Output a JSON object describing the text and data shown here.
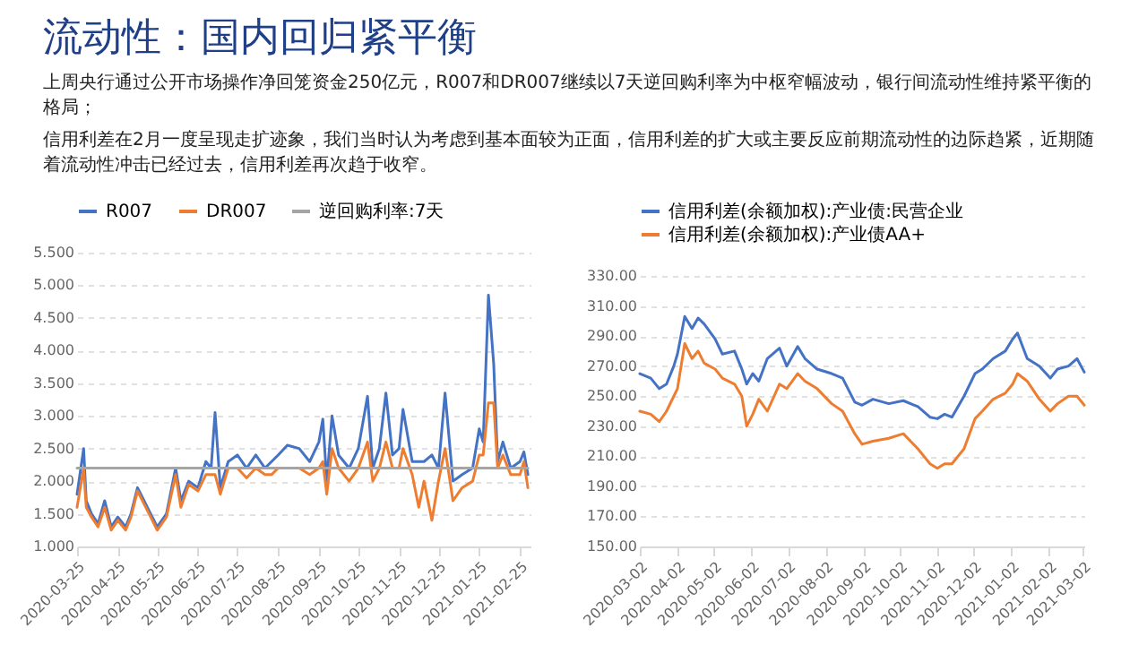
{
  "chart_data": [
    {
      "type": "other",
      "title": "流动性：国内回归紧平衡",
      "annotations": [
        "上周央行通过公开市场操作净回笼资金250亿元，R007和DR007继续以7天逆回购利率为中枢窄幅波动，银行间流动性维持紧平衡的格局；",
        "信用利差在2月一度呈现走扩迹象，我们当时认为考虑到基本面较为正面，信用利差的扩大或主要反应前期流动性的边际趋紧，近期随着流动性冲击已经过去，信用利差再次趋于收窄。"
      ]
    },
    {
      "type": "line",
      "legend": "top",
      "grid": "y",
      "xlim": [
        "2020-03-25",
        "2021-03-05"
      ],
      "xticks": [
        "2020-03-25",
        "2020-04-25",
        "2020-05-25",
        "2020-06-25",
        "2020-07-25",
        "2020-08-25",
        "2020-09-25",
        "2020-10-25",
        "2020-11-25",
        "2020-12-25",
        "2021-01-25",
        "2021-02-25"
      ],
      "ylim": [
        1,
        5.5
      ],
      "yticks": [
        {
          "value": 1,
          "label": "1.000"
        },
        {
          "value": 1.5,
          "label": "1.500"
        },
        {
          "value": 2,
          "label": "2.000"
        },
        {
          "value": 2.5,
          "label": "2.500"
        },
        {
          "value": 3,
          "label": "3.000"
        },
        {
          "value": 3.5,
          "label": "3.500"
        },
        {
          "value": 4,
          "label": "4.000"
        },
        {
          "value": 4.5,
          "label": "4.500"
        },
        {
          "value": 5,
          "label": "5.000"
        },
        {
          "value": 5.5,
          "label": "5.500"
        }
      ],
      "x": [
        "2020-03-25",
        "2020-03-30",
        "2020-04-01",
        "2020-04-05",
        "2020-04-10",
        "2020-04-15",
        "2020-04-20",
        "2020-04-25",
        "2020-05-01",
        "2020-05-05",
        "2020-05-10",
        "2020-05-15",
        "2020-05-20",
        "2020-05-25",
        "2020-06-01",
        "2020-06-08",
        "2020-06-12",
        "2020-06-18",
        "2020-06-25",
        "2020-07-01",
        "2020-07-05",
        "2020-07-08",
        "2020-07-12",
        "2020-07-18",
        "2020-07-25",
        "2020-08-01",
        "2020-08-08",
        "2020-08-15",
        "2020-08-20",
        "2020-08-25",
        "2020-09-01",
        "2020-09-10",
        "2020-09-18",
        "2020-09-25",
        "2020-09-28",
        "2020-10-01",
        "2020-10-05",
        "2020-10-10",
        "2020-10-18",
        "2020-10-25",
        "2020-11-01",
        "2020-11-05",
        "2020-11-10",
        "2020-11-15",
        "2020-11-20",
        "2020-11-25",
        "2020-11-28",
        "2020-12-05",
        "2020-12-10",
        "2020-12-14",
        "2020-12-20",
        "2020-12-25",
        "2020-12-30",
        "2021-01-05",
        "2021-01-12",
        "2021-01-20",
        "2021-01-25",
        "2021-01-28",
        "2021-02-01",
        "2021-02-05",
        "2021-02-08",
        "2021-02-12",
        "2021-02-18",
        "2021-02-25",
        "2021-02-28",
        "2021-03-03"
      ],
      "series": [
        {
          "name": "R007",
          "color": "#4472c4",
          "values": [
            1.8,
            2.5,
            1.7,
            1.5,
            1.35,
            1.7,
            1.3,
            1.45,
            1.3,
            1.5,
            1.9,
            1.7,
            1.5,
            1.3,
            1.5,
            2.2,
            1.7,
            2.0,
            1.9,
            2.3,
            2.2,
            3.05,
            1.9,
            2.3,
            2.4,
            2.2,
            2.4,
            2.2,
            2.3,
            2.4,
            2.55,
            2.5,
            2.3,
            2.6,
            2.95,
            2.0,
            3.0,
            2.4,
            2.2,
            2.5,
            3.3,
            2.2,
            2.5,
            3.35,
            2.4,
            2.5,
            3.1,
            2.3,
            2.3,
            2.3,
            2.4,
            2.2,
            3.35,
            2.0,
            2.1,
            2.2,
            2.8,
            2.6,
            4.85,
            3.8,
            2.3,
            2.6,
            2.2,
            2.3,
            2.45,
            2.1
          ]
        },
        {
          "name": "DR007",
          "color": "#ed7d31",
          "values": [
            1.6,
            2.2,
            1.6,
            1.45,
            1.3,
            1.6,
            1.25,
            1.4,
            1.25,
            1.45,
            1.85,
            1.65,
            1.45,
            1.25,
            1.45,
            2.1,
            1.6,
            1.95,
            1.85,
            2.1,
            2.1,
            2.1,
            1.8,
            2.2,
            2.2,
            2.05,
            2.2,
            2.1,
            2.1,
            2.2,
            2.2,
            2.2,
            2.1,
            2.2,
            2.3,
            1.8,
            2.5,
            2.2,
            2.0,
            2.2,
            2.6,
            2.0,
            2.2,
            2.6,
            2.2,
            2.2,
            2.5,
            2.1,
            1.6,
            2.0,
            1.4,
            2.0,
            2.5,
            1.7,
            1.9,
            2.0,
            2.4,
            2.4,
            3.2,
            3.2,
            2.2,
            2.4,
            2.1,
            2.1,
            2.3,
            1.9
          ]
        },
        {
          "name": "逆回购利率:7天",
          "color": "#a5a5a5",
          "x": [
            "2020-03-25",
            "2021-03-03"
          ],
          "values": [
            2.2,
            2.2
          ]
        }
      ]
    },
    {
      "type": "line",
      "legend": "top",
      "grid": "y",
      "xlim": [
        "2020-03-02",
        "2021-03-03"
      ],
      "xticks": [
        "2020-03-02",
        "2020-04-02",
        "2020-05-02",
        "2020-06-02",
        "2020-07-02",
        "2020-08-02",
        "2020-09-02",
        "2020-10-02",
        "2020-11-02",
        "2020-12-02",
        "2021-01-02",
        "2021-02-02",
        "2021-03-02"
      ],
      "ylim": [
        150,
        330
      ],
      "yticks": [
        {
          "value": 150,
          "label": "150.00"
        },
        {
          "value": 170,
          "label": "170.00"
        },
        {
          "value": 190,
          "label": "190.00"
        },
        {
          "value": 210,
          "label": "210.00"
        },
        {
          "value": 230,
          "label": "230.00"
        },
        {
          "value": 250,
          "label": "250.00"
        },
        {
          "value": 270,
          "label": "270.00"
        },
        {
          "value": 290,
          "label": "290.00"
        },
        {
          "value": 310,
          "label": "310.00"
        },
        {
          "value": 330,
          "label": "330.00"
        }
      ],
      "x": [
        "2020-03-02",
        "2020-03-11",
        "2020-03-18",
        "2020-03-24",
        "2020-03-30",
        "2020-04-02",
        "2020-04-08",
        "2020-04-14",
        "2020-04-19",
        "2020-04-24",
        "2020-05-03",
        "2020-05-09",
        "2020-05-19",
        "2020-05-25",
        "2020-05-29",
        "2020-06-03",
        "2020-06-08",
        "2020-06-15",
        "2020-06-25",
        "2020-07-01",
        "2020-07-10",
        "2020-07-16",
        "2020-07-26",
        "2020-08-07",
        "2020-08-16",
        "2020-08-26",
        "2020-09-01",
        "2020-09-10",
        "2020-09-23",
        "2020-10-05",
        "2020-10-17",
        "2020-10-27",
        "2020-11-02",
        "2020-11-08",
        "2020-11-14",
        "2020-11-24",
        "2020-12-03",
        "2020-12-09",
        "2020-12-18",
        "2020-12-28",
        "2021-01-03",
        "2021-01-07",
        "2021-01-15",
        "2021-01-25",
        "2021-02-03",
        "2021-02-09",
        "2021-02-18",
        "2021-02-25",
        "2021-03-03"
      ],
      "series": [
        {
          "name": "信用利差(余额加权):产业债:民营企业",
          "color": "#4472c4",
          "values": [
            265,
            262,
            255,
            258,
            270,
            278,
            303,
            295,
            302,
            298,
            288,
            278,
            280,
            268,
            258,
            265,
            260,
            275,
            282,
            270,
            283,
            275,
            268,
            265,
            262,
            246,
            244,
            248,
            245,
            247,
            243,
            236,
            235,
            238,
            236,
            250,
            265,
            268,
            275,
            280,
            288,
            292,
            275,
            270,
            262,
            268,
            270,
            275,
            266
          ]
        },
        {
          "name": "信用利差(余额加权):产业债AA+",
          "color": "#ed7d31",
          "values": [
            240,
            238,
            233,
            240,
            250,
            255,
            285,
            275,
            280,
            272,
            268,
            262,
            258,
            250,
            230,
            238,
            248,
            240,
            258,
            255,
            265,
            260,
            255,
            245,
            240,
            225,
            218,
            220,
            222,
            225,
            215,
            205,
            202,
            205,
            205,
            215,
            235,
            240,
            248,
            252,
            258,
            265,
            260,
            248,
            240,
            245,
            250,
            250,
            244
          ]
        }
      ]
    }
  ]
}
